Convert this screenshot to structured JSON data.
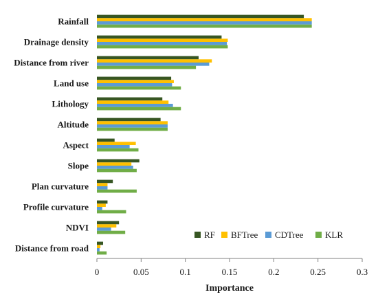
{
  "chart_data": {
    "type": "bar",
    "orientation": "horizontal",
    "categories": [
      "Rainfall",
      "Drainage density",
      "Distance from river",
      "Land use",
      "Lithology",
      "Altitude",
      "Aspect",
      "Slope",
      "Plan curvature",
      "Profile curvature",
      "NDVI",
      "Distance from road"
    ],
    "series": [
      {
        "name": "RF",
        "color": "#375623",
        "values": [
          0.234,
          0.141,
          0.115,
          0.084,
          0.074,
          0.072,
          0.02,
          0.048,
          0.018,
          0.012,
          0.025,
          0.007
        ]
      },
      {
        "name": "BFTree",
        "color": "#ffc000",
        "values": [
          0.243,
          0.148,
          0.13,
          0.087,
          0.081,
          0.08,
          0.044,
          0.039,
          0.012,
          0.01,
          0.022,
          0.004
        ]
      },
      {
        "name": "CDTree",
        "color": "#5b9bd5",
        "values": [
          0.243,
          0.147,
          0.127,
          0.085,
          0.086,
          0.08,
          0.037,
          0.041,
          0.012,
          0.006,
          0.016,
          0.003
        ]
      },
      {
        "name": "KLR",
        "color": "#70ad47",
        "values": [
          0.243,
          0.148,
          0.112,
          0.095,
          0.095,
          0.08,
          0.047,
          0.045,
          0.045,
          0.033,
          0.032,
          0.011
        ]
      }
    ],
    "xlabel": "Importance",
    "ylabel": "",
    "xlim": [
      0,
      0.3
    ],
    "xticks": [
      "0",
      "0.05",
      "0.1",
      "0.15",
      "0.2",
      "0.25",
      "0.3"
    ],
    "grid": false,
    "legend_position": "bottom-right"
  }
}
